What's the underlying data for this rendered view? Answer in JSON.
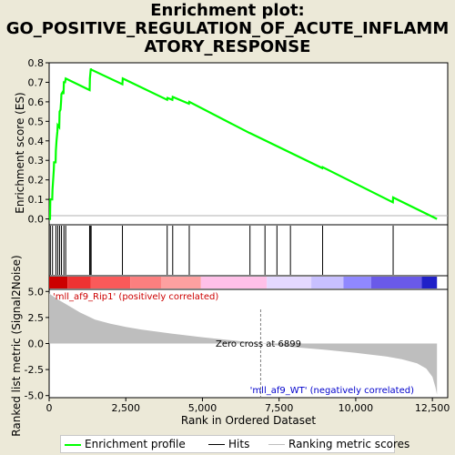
{
  "title_lines": [
    "Enrichment plot:",
    "GO_POSITIVE_REGULATION_OF_ACUTE_INFLAMM",
    "ATORY_RESPONSE"
  ],
  "colors": {
    "enrichment": "#00ff00",
    "hits": "#000000",
    "ranking_fill": "#bebebe",
    "positive_label": "#cc0000",
    "negative_label": "#0000cc"
  },
  "chart_data": {
    "type": "line",
    "top_panel": {
      "ylabel": "Enrichment score (ES)",
      "ylim": [
        -0.03,
        0.8
      ],
      "yticks": [
        0.0,
        0.1,
        0.2,
        0.3,
        0.4,
        0.5,
        0.6,
        0.7,
        0.8
      ],
      "ytick_labels": [
        "0.0",
        "0.1",
        "0.2",
        "0.3",
        "0.4",
        "0.5",
        "0.6",
        "0.7",
        "0.8"
      ],
      "series": [
        {
          "name": "Enrichment profile",
          "x": [
            0,
            30,
            40,
            100,
            110,
            130,
            150,
            160,
            210,
            220,
            240,
            270,
            280,
            330,
            340,
            370,
            390,
            400,
            440,
            470,
            480,
            520,
            540,
            1320,
            1330,
            1360,
            1370,
            2390,
            2400,
            3850,
            3860,
            4020,
            4030,
            4560,
            4570,
            6540,
            6550,
            8910,
            8920,
            11210,
            11220,
            12650
          ],
          "y": [
            0.0,
            0.0,
            0.1,
            0.1,
            0.15,
            0.2,
            0.25,
            0.29,
            0.29,
            0.35,
            0.4,
            0.45,
            0.48,
            0.47,
            0.55,
            0.56,
            0.6,
            0.64,
            0.65,
            0.64,
            0.7,
            0.7,
            0.72,
            0.66,
            0.72,
            0.77,
            0.765,
            0.69,
            0.72,
            0.61,
            0.62,
            0.61,
            0.625,
            0.59,
            0.6,
            0.44,
            0.44,
            0.26,
            0.265,
            0.085,
            0.11,
            0.0
          ]
        }
      ]
    },
    "hits": {
      "name": "Hits",
      "x": [
        40,
        110,
        220,
        280,
        340,
        400,
        480,
        540,
        1320,
        1340,
        1370,
        2390,
        3850,
        4030,
        4570,
        6550,
        7040,
        7430,
        7870,
        8920,
        11220
      ]
    },
    "ranking": {
      "name": "Ranking metric scores",
      "ylabel": "Ranked list metric (Signal2Noise)",
      "ylim": [
        -5.2,
        5.2
      ],
      "yticks": [
        5.0,
        2.5,
        0.0,
        -2.5,
        -5.0
      ],
      "ytick_labels": [
        "5.0",
        "2.5",
        "0.0",
        "-2.5",
        "-5.0"
      ],
      "x": [
        0,
        100,
        300,
        600,
        1000,
        1500,
        2000,
        2500,
        3000,
        4000,
        5000,
        6000,
        6899,
        8000,
        9000,
        10000,
        11000,
        11500,
        12000,
        12300,
        12500,
        12600,
        12650
      ],
      "y": [
        4.8,
        4.6,
        4.2,
        3.7,
        3.0,
        2.3,
        1.9,
        1.6,
        1.35,
        0.95,
        0.6,
        0.3,
        0.0,
        -0.35,
        -0.6,
        -0.9,
        -1.25,
        -1.5,
        -1.9,
        -2.4,
        -3.2,
        -4.2,
        -4.9
      ],
      "positive_label": "'mll_af9_Rip1' (positively correlated)",
      "negative_label": "'mll_af9_WT' (negatively correlated)",
      "zero_cross_label": "Zero cross at 6899",
      "zero_cross": 6899
    },
    "heat_bar": [
      {
        "x0": 0,
        "x1": 600,
        "color": "#cc0000"
      },
      {
        "x0": 600,
        "x1": 1350,
        "color": "#ee3333"
      },
      {
        "x0": 1350,
        "x1": 2650,
        "color": "#fa5a5a"
      },
      {
        "x0": 2650,
        "x1": 3650,
        "color": "#fc7f7f"
      },
      {
        "x0": 3650,
        "x1": 4950,
        "color": "#fda0a0"
      },
      {
        "x0": 4950,
        "x1": 7100,
        "color": "#ffc0e8"
      },
      {
        "x0": 7100,
        "x1": 8550,
        "color": "#e4d8ff"
      },
      {
        "x0": 8550,
        "x1": 9600,
        "color": "#c8c0ff"
      },
      {
        "x0": 9600,
        "x1": 10500,
        "color": "#9088ff"
      },
      {
        "x0": 10500,
        "x1": 12150,
        "color": "#6a5ae8"
      },
      {
        "x0": 12150,
        "x1": 12650,
        "color": "#2020c8"
      }
    ],
    "xlabel": "Rank in Ordered Dataset",
    "xlim": [
      0,
      13000
    ],
    "xticks": [
      0,
      2500,
      5000,
      7500,
      10000,
      12500
    ],
    "xtick_labels": [
      "0",
      "2,500",
      "5,000",
      "7,500",
      "10,000",
      "12,500"
    ]
  },
  "legend": {
    "enrichment_label": "Enrichment profile",
    "hits_label": "Hits",
    "ranking_label": "Ranking metric scores"
  }
}
